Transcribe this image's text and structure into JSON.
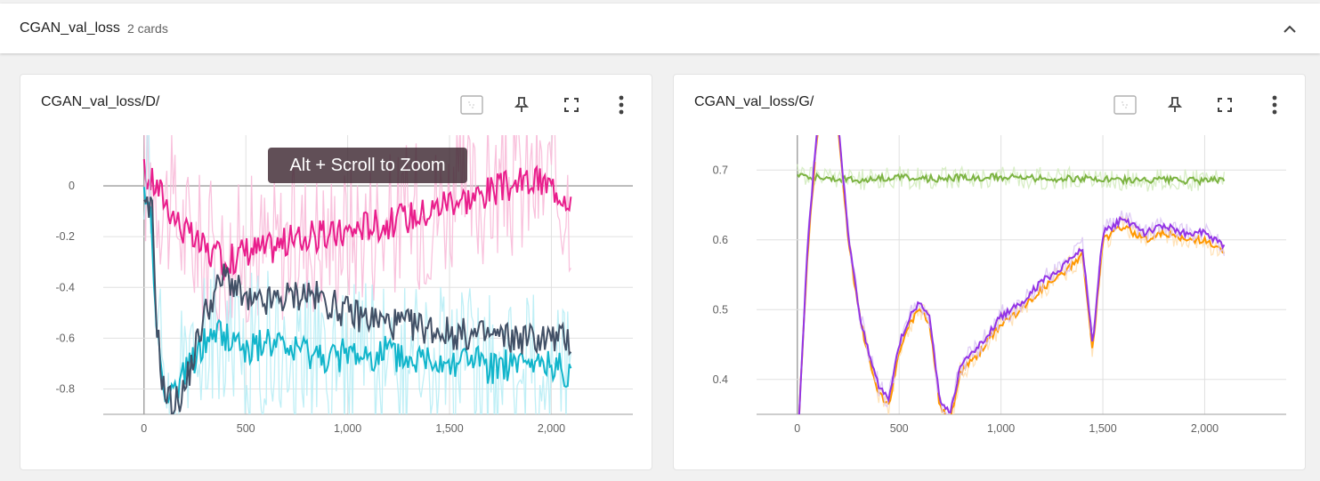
{
  "group": {
    "title": "CGAN_val_loss",
    "count": "2 cards"
  },
  "cards": [
    {
      "title": "CGAN_val_loss/D/",
      "tooltip": "Alt + Scroll to Zoom",
      "chart_data": {
        "type": "line",
        "title": "CGAN_val_loss/D/",
        "xlim": [
          -200,
          2400
        ],
        "ylim": [
          -0.9,
          0.2
        ],
        "xticks": [
          0,
          500,
          1000,
          1500,
          2000
        ],
        "xtick_labels": [
          "0",
          "500",
          "1,000",
          "1,500",
          "2,000"
        ],
        "yticks": [
          0,
          -0.2,
          -0.4,
          -0.6,
          -0.8
        ],
        "ytick_labels": [
          "0",
          "-0.2",
          "-0.4",
          "-0.6",
          "-0.8"
        ],
        "grid": true,
        "series": [
          {
            "color": "#e91e8c",
            "raw_color": "#f8bbd9",
            "x": [
              0,
              30,
              60,
              100,
              150,
              200,
              250,
              300,
              350,
              400,
              450,
              500,
              600,
              700,
              800,
              900,
              1000,
              1100,
              1200,
              1300,
              1400,
              1500,
              1600,
              1700,
              1800,
              1900,
              2000,
              2100
            ],
            "y": [
              0.05,
              0.02,
              0.0,
              -0.05,
              -0.12,
              -0.18,
              -0.22,
              -0.25,
              -0.28,
              -0.3,
              -0.28,
              -0.25,
              -0.25,
              -0.22,
              -0.2,
              -0.2,
              -0.18,
              -0.15,
              -0.15,
              -0.12,
              -0.1,
              -0.05,
              -0.05,
              -0.02,
              0.0,
              0.02,
              0.0,
              -0.05
            ]
          },
          {
            "color": "#12b5cb",
            "raw_color": "#b8edf5",
            "x": [
              0,
              30,
              60,
              80,
              100,
              150,
              200,
              250,
              300,
              350,
              400,
              450,
              500,
              600,
              700,
              800,
              900,
              1000,
              1100,
              1200,
              1300,
              1400,
              1500,
              1600,
              1700,
              1800,
              1900,
              2000,
              2100
            ],
            "y": [
              -0.05,
              -0.06,
              -0.55,
              -0.7,
              -0.8,
              -0.82,
              -0.75,
              -0.68,
              -0.62,
              -0.58,
              -0.6,
              -0.62,
              -0.65,
              -0.62,
              -0.65,
              -0.66,
              -0.68,
              -0.66,
              -0.68,
              -0.65,
              -0.7,
              -0.68,
              -0.7,
              -0.68,
              -0.72,
              -0.7,
              -0.72,
              -0.7,
              -0.75
            ]
          },
          {
            "color": "#425066",
            "raw_color": "#425066",
            "x": [
              0,
              40,
              60,
              80,
              100,
              150,
              200,
              250,
              300,
              350,
              400,
              450,
              500,
              550,
              600,
              700,
              800,
              900,
              1000,
              1100,
              1200,
              1300,
              1400,
              1500,
              1600,
              1700,
              1800,
              1900,
              2000,
              2100
            ],
            "y": [
              -0.1,
              -0.1,
              -0.5,
              -0.7,
              -0.82,
              -0.86,
              -0.8,
              -0.65,
              -0.5,
              -0.42,
              -0.35,
              -0.4,
              -0.46,
              -0.47,
              -0.46,
              -0.44,
              -0.42,
              -0.46,
              -0.5,
              -0.52,
              -0.54,
              -0.55,
              -0.56,
              -0.58,
              -0.59,
              -0.59,
              -0.6,
              -0.6,
              -0.6,
              -0.61
            ]
          }
        ]
      }
    },
    {
      "title": "CGAN_val_loss/G/",
      "chart_data": {
        "type": "line",
        "title": "CGAN_val_loss/G/",
        "xlim": [
          -200,
          2400
        ],
        "ylim": [
          0.35,
          0.75
        ],
        "xticks": [
          0,
          500,
          1000,
          1500,
          2000
        ],
        "xtick_labels": [
          "0",
          "500",
          "1,000",
          "1,500",
          "2,000"
        ],
        "yticks": [
          0.4,
          0.5,
          0.6,
          0.7
        ],
        "ytick_labels": [
          "0.4",
          "0.5",
          "0.6",
          "0.7"
        ],
        "grid": true,
        "series": [
          {
            "color": "#7cb342",
            "raw_color": "#d4ecc0",
            "x": [
              0,
              100,
              200,
              300,
              400,
              500,
              600,
              700,
              800,
              900,
              1000,
              1100,
              1200,
              1300,
              1400,
              1500,
              1600,
              1700,
              1800,
              1900,
              2000,
              2100
            ],
            "y": [
              0.695,
              0.69,
              0.688,
              0.685,
              0.688,
              0.69,
              0.687,
              0.688,
              0.69,
              0.689,
              0.69,
              0.689,
              0.688,
              0.688,
              0.688,
              0.686,
              0.686,
              0.685,
              0.686,
              0.685,
              0.684,
              0.686
            ]
          },
          {
            "color": "#ff9800",
            "raw_color": "#ffe0b2",
            "x": [
              0,
              50,
              100,
              150,
              200,
              250,
              300,
              350,
              400,
              450,
              500,
              550,
              600,
              650,
              700,
              750,
              800,
              900,
              1000,
              1100,
              1200,
              1300,
              1400,
              1450,
              1500,
              1600,
              1700,
              1800,
              1900,
              2000,
              2100
            ],
            "y": [
              0.3,
              0.58,
              0.76,
              0.8,
              0.76,
              0.6,
              0.5,
              0.43,
              0.38,
              0.36,
              0.44,
              0.48,
              0.5,
              0.48,
              0.36,
              0.34,
              0.41,
              0.44,
              0.48,
              0.5,
              0.53,
              0.55,
              0.58,
              0.44,
              0.6,
              0.62,
              0.6,
              0.61,
              0.6,
              0.6,
              0.58
            ]
          },
          {
            "color": "#9334e6",
            "raw_color": "#dcc6f4",
            "x": [
              0,
              50,
              100,
              150,
              200,
              250,
              300,
              350,
              400,
              450,
              500,
              550,
              600,
              650,
              700,
              750,
              800,
              900,
              1000,
              1100,
              1200,
              1300,
              1400,
              1450,
              1500,
              1600,
              1700,
              1800,
              1900,
              2000,
              2100
            ],
            "y": [
              0.3,
              0.59,
              0.77,
              0.81,
              0.77,
              0.61,
              0.5,
              0.44,
              0.39,
              0.37,
              0.45,
              0.49,
              0.51,
              0.49,
              0.37,
              0.35,
              0.42,
              0.45,
              0.49,
              0.51,
              0.54,
              0.56,
              0.59,
              0.45,
              0.61,
              0.63,
              0.61,
              0.62,
              0.61,
              0.61,
              0.59
            ]
          }
        ]
      }
    }
  ]
}
